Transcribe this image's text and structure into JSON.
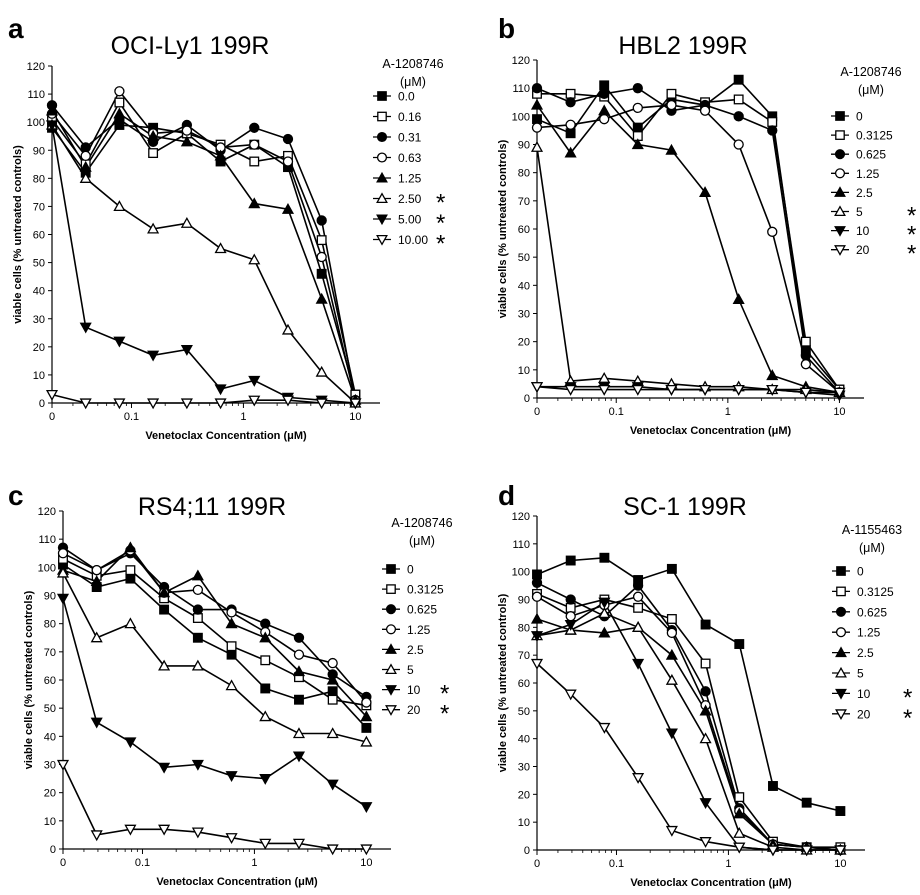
{
  "chart_data": [
    {
      "type": "line",
      "panel": "a",
      "title": "OCI-Ly1 199R",
      "xlabel": "Venetoclax Concentration (μM)",
      "ylabel": "viable cells (% untreated controls)",
      "xscale": "log (0 shown at axis origin)",
      "xticks": [
        "0",
        "0.1",
        "1",
        "10"
      ],
      "ylim": [
        0,
        120
      ],
      "yticks": [
        0,
        10,
        20,
        30,
        40,
        50,
        60,
        70,
        80,
        90,
        100,
        110,
        120
      ],
      "x": [
        0,
        0.039,
        0.078,
        0.156,
        0.3125,
        0.625,
        1.25,
        2.5,
        5,
        10
      ],
      "legend_title_line1": "A-1208746",
      "legend_title_line2": "(μM)",
      "series": [
        {
          "name": "0.0",
          "marker": "square",
          "filled": true,
          "significant": false,
          "values": [
            98,
            82,
            99,
            98,
            96,
            86,
            92,
            84,
            46,
            3
          ]
        },
        {
          "name": "0.16",
          "marker": "square",
          "filled": false,
          "significant": false,
          "values": [
            101,
            85,
            107,
            89,
            96,
            92,
            86,
            88,
            58,
            3
          ]
        },
        {
          "name": "0.31",
          "marker": "circle",
          "filled": true,
          "significant": false,
          "values": [
            106,
            91,
            101,
            93,
            99,
            90,
            98,
            94,
            65,
            1
          ]
        },
        {
          "name": "0.63",
          "marker": "circle",
          "filled": false,
          "significant": false,
          "values": [
            103,
            88,
            111,
            96,
            97,
            91,
            92,
            86,
            52,
            1
          ]
        },
        {
          "name": "1.25",
          "marker": "triangle-up",
          "filled": true,
          "significant": false,
          "values": [
            104,
            84,
            103,
            95,
            93,
            88,
            71,
            69,
            37,
            1
          ]
        },
        {
          "name": "2.50",
          "marker": "triangle-up",
          "filled": false,
          "significant": true,
          "values": [
            99,
            80,
            70,
            62,
            64,
            55,
            51,
            26,
            11,
            0
          ]
        },
        {
          "name": "5.00",
          "marker": "triangle-down",
          "filled": true,
          "significant": true,
          "values": [
            99,
            27,
            22,
            17,
            19,
            5,
            8,
            2,
            1,
            0
          ]
        },
        {
          "name": "10.00",
          "marker": "triangle-down",
          "filled": false,
          "significant": true,
          "values": [
            3,
            0,
            0,
            0,
            0,
            0,
            1,
            1,
            0,
            0
          ]
        }
      ]
    },
    {
      "type": "line",
      "panel": "b",
      "title": "HBL2 199R",
      "xlabel": "Venetoclax Concentration (μM)",
      "ylabel": "viable cells (% untreated controls)",
      "xscale": "log (0 shown at axis origin)",
      "xticks": [
        "0",
        "0.1",
        "1",
        "10"
      ],
      "ylim": [
        0,
        120
      ],
      "yticks": [
        0,
        10,
        20,
        30,
        40,
        50,
        60,
        70,
        80,
        90,
        100,
        110,
        120
      ],
      "x": [
        0,
        0.039,
        0.078,
        0.156,
        0.3125,
        0.625,
        1.25,
        2.5,
        5,
        10
      ],
      "legend_title_line1": "A-1208746",
      "legend_title_line2": "(μM)",
      "series": [
        {
          "name": "0",
          "marker": "square",
          "filled": true,
          "significant": false,
          "values": [
            99,
            94,
            111,
            96,
            106,
            104,
            113,
            100,
            17,
            3
          ]
        },
        {
          "name": "0.3125",
          "marker": "square",
          "filled": false,
          "significant": false,
          "values": [
            108,
            108,
            107,
            93,
            108,
            105,
            106,
            98,
            20,
            3
          ]
        },
        {
          "name": "0.625",
          "marker": "circle",
          "filled": true,
          "significant": false,
          "values": [
            110,
            105,
            108,
            110,
            102,
            104,
            100,
            95,
            15,
            2
          ]
        },
        {
          "name": "1.25",
          "marker": "circle",
          "filled": false,
          "significant": false,
          "values": [
            96,
            97,
            99,
            103,
            104,
            102,
            90,
            59,
            12,
            2
          ]
        },
        {
          "name": "2.5",
          "marker": "triangle-up",
          "filled": true,
          "significant": false,
          "values": [
            104,
            87,
            102,
            90,
            88,
            73,
            35,
            8,
            4,
            2
          ]
        },
        {
          "name": "5",
          "marker": "triangle-up",
          "filled": false,
          "significant": true,
          "values": [
            89,
            6,
            7,
            6,
            5,
            4,
            4,
            3,
            3,
            2
          ]
        },
        {
          "name": "10",
          "marker": "triangle-down",
          "filled": true,
          "significant": true,
          "values": [
            4,
            4,
            4,
            4,
            3,
            3,
            3,
            3,
            2,
            1
          ]
        },
        {
          "name": "20",
          "marker": "triangle-down",
          "filled": false,
          "significant": true,
          "values": [
            4,
            3,
            3,
            3,
            3,
            3,
            3,
            3,
            2,
            2
          ]
        }
      ]
    },
    {
      "type": "line",
      "panel": "c",
      "title": "RS4;11 199R",
      "xlabel": "Venetoclax Concentration (μM)",
      "ylabel": "viable cells (% untreated controls)",
      "xscale": "log (0 shown at axis origin)",
      "xticks": [
        "0",
        "0.1",
        "1",
        "10"
      ],
      "ylim": [
        0,
        120
      ],
      "yticks": [
        0,
        10,
        20,
        30,
        40,
        50,
        60,
        70,
        80,
        90,
        100,
        110,
        120
      ],
      "x": [
        0,
        0.039,
        0.078,
        0.156,
        0.3125,
        0.625,
        1.25,
        2.5,
        5,
        10
      ],
      "legend_title_line1": "A-1208746",
      "legend_title_line2": "(μM)",
      "series": [
        {
          "name": "0",
          "marker": "square",
          "filled": true,
          "significant": false,
          "values": [
            101,
            93,
            96,
            85,
            75,
            69,
            57,
            53,
            56,
            43
          ]
        },
        {
          "name": "0.3125",
          "marker": "square",
          "filled": false,
          "significant": false,
          "values": [
            103,
            97,
            99,
            89,
            82,
            72,
            67,
            61,
            53,
            51
          ]
        },
        {
          "name": "0.625",
          "marker": "circle",
          "filled": true,
          "significant": false,
          "values": [
            107,
            99,
            105,
            93,
            85,
            85,
            80,
            75,
            62,
            54
          ]
        },
        {
          "name": "1.25",
          "marker": "circle",
          "filled": false,
          "significant": false,
          "values": [
            105,
            99,
            106,
            91,
            92,
            84,
            77,
            69,
            66,
            52
          ]
        },
        {
          "name": "2.5",
          "marker": "triangle-up",
          "filled": true,
          "significant": false,
          "values": [
            99,
            95,
            107,
            91,
            97,
            80,
            75,
            63,
            60,
            47
          ]
        },
        {
          "name": "5",
          "marker": "triangle-up",
          "filled": false,
          "significant": false,
          "values": [
            98,
            75,
            80,
            65,
            65,
            58,
            47,
            41,
            41,
            38
          ]
        },
        {
          "name": "10",
          "marker": "triangle-down",
          "filled": true,
          "significant": true,
          "values": [
            89,
            45,
            38,
            29,
            30,
            26,
            25,
            33,
            23,
            15
          ]
        },
        {
          "name": "20",
          "marker": "triangle-down",
          "filled": false,
          "significant": true,
          "values": [
            30,
            5,
            7,
            7,
            6,
            4,
            2,
            2,
            0,
            0
          ]
        }
      ]
    },
    {
      "type": "line",
      "panel": "d",
      "title": "SC-1 199R",
      "xlabel": "Venetoclax Concentration (μM)",
      "ylabel": "viable cells (% untreated controls)",
      "xscale": "log (0 shown at axis origin)",
      "xticks": [
        "0",
        "0.1",
        "1",
        "10"
      ],
      "ylim": [
        0,
        120
      ],
      "yticks": [
        0,
        10,
        20,
        30,
        40,
        50,
        60,
        70,
        80,
        90,
        100,
        110,
        120
      ],
      "x": [
        0,
        0.039,
        0.078,
        0.156,
        0.3125,
        0.625,
        1.25,
        2.5,
        5,
        10
      ],
      "legend_title_line1": "A-1155463",
      "legend_title_line2": "(μM)",
      "series": [
        {
          "name": "0",
          "marker": "square",
          "filled": true,
          "significant": false,
          "values": [
            99,
            104,
            105,
            97,
            101,
            81,
            74,
            23,
            17,
            14
          ]
        },
        {
          "name": "0.3125",
          "marker": "square",
          "filled": false,
          "significant": false,
          "values": [
            92,
            87,
            90,
            87,
            83,
            67,
            19,
            3,
            1,
            1
          ]
        },
        {
          "name": "0.625",
          "marker": "circle",
          "filled": true,
          "significant": false,
          "values": [
            96,
            90,
            84,
            95,
            79,
            57,
            15,
            2,
            1,
            0
          ]
        },
        {
          "name": "1.25",
          "marker": "circle",
          "filled": false,
          "significant": false,
          "values": [
            91,
            84,
            88,
            91,
            78,
            52,
            14,
            2,
            1,
            0
          ]
        },
        {
          "name": "2.5",
          "marker": "triangle-up",
          "filled": true,
          "significant": false,
          "values": [
            83,
            79,
            78,
            80,
            70,
            50,
            13,
            2,
            1,
            0
          ]
        },
        {
          "name": "5",
          "marker": "triangle-up",
          "filled": false,
          "significant": false,
          "values": [
            77,
            79,
            85,
            80,
            61,
            40,
            6,
            1,
            0,
            0
          ]
        },
        {
          "name": "10",
          "marker": "triangle-down",
          "filled": true,
          "significant": true,
          "values": [
            77,
            81,
            89,
            67,
            42,
            17,
            1,
            0,
            0,
            0
          ]
        },
        {
          "name": "20",
          "marker": "triangle-down",
          "filled": false,
          "significant": true,
          "values": [
            67,
            56,
            44,
            26,
            7,
            3,
            1,
            0,
            0,
            0
          ]
        }
      ]
    }
  ]
}
